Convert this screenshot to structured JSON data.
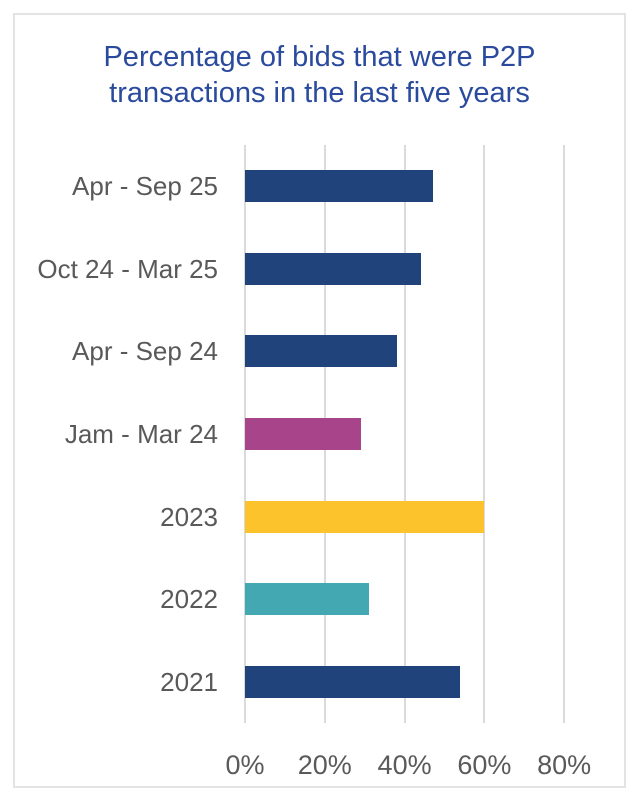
{
  "figure": {
    "title": "Percentage of bids that were P2P transactions in the last five years"
  },
  "chart_data": {
    "type": "bar",
    "orientation": "horizontal",
    "title": "Percentage of bids that were P2P transactions in the last five years",
    "categories": [
      "Apr - Sep 25",
      "Oct 24 - Mar 25",
      "Apr - Sep 24",
      "Jam - Mar 24",
      "2023",
      "2022",
      "2021"
    ],
    "values": [
      47,
      44,
      38,
      29,
      60,
      31,
      54
    ],
    "bar_colors": [
      "#20437c",
      "#20437c",
      "#20437c",
      "#a8458a",
      "#fcc32c",
      "#43a8b2",
      "#20437c"
    ],
    "xlabel": "",
    "ylabel": "",
    "x_ticks": [
      "0%",
      "20%",
      "40%",
      "60%",
      "80%"
    ],
    "x_tick_values": [
      0,
      20,
      40,
      60,
      80
    ],
    "xlim": [
      0,
      95
    ],
    "grid": true,
    "legend": "none",
    "colors": {
      "title_text": "#2a4a9d",
      "category_text": "#595959",
      "tick_text": "#5a5a5a",
      "gridline": "#dadada",
      "frame_border": "#e3e3e3",
      "background": "#ffffff"
    }
  }
}
